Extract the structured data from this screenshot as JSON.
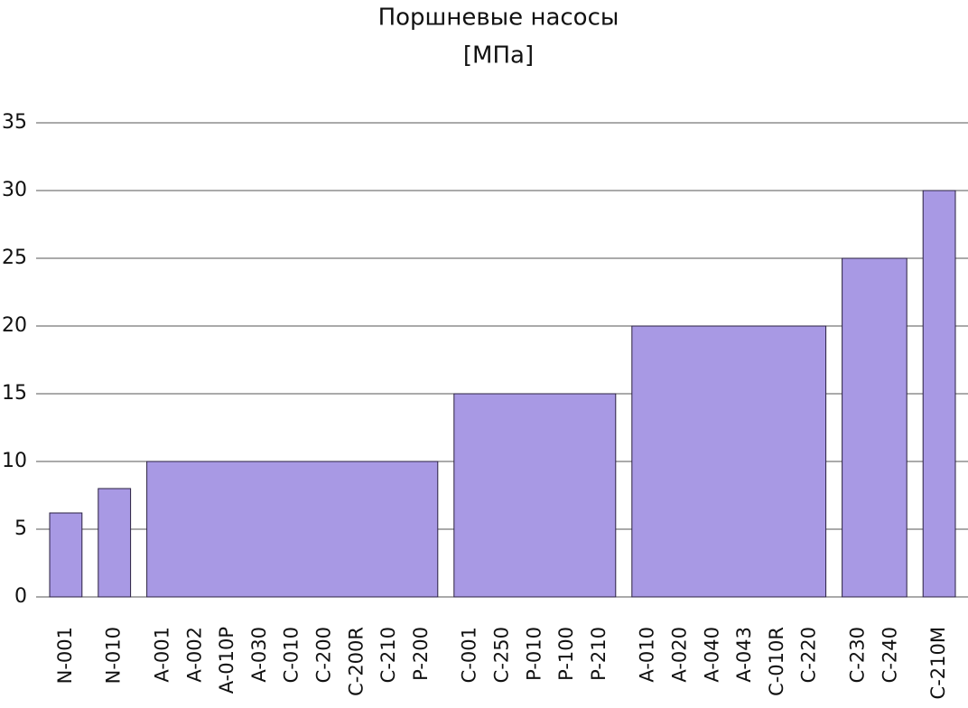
{
  "chart_data": {
    "type": "bar",
    "title": "Поршневые насосы",
    "subtitle": "[МПа]",
    "color": "#a899e4",
    "edge_color": "#2a2040",
    "grid": true,
    "ylim": [
      0,
      35
    ],
    "yticks": [
      0,
      5,
      10,
      15,
      20,
      25,
      30,
      35
    ],
    "groups": [
      {
        "categories": [
          "N-001"
        ],
        "value": 6.2
      },
      {
        "categories": [
          "N-010"
        ],
        "value": 8
      },
      {
        "categories": [
          "A-001",
          "A-002",
          "A-010P",
          "A-030",
          "C-010",
          "C-200",
          "C-200R",
          "C-210",
          "P-200"
        ],
        "value": 10
      },
      {
        "categories": [
          "C-001",
          "C-250",
          "P-010",
          "P-100",
          "P-210"
        ],
        "value": 15
      },
      {
        "categories": [
          "A-010",
          "A-020",
          "A-040",
          "A-043",
          "C-010R",
          "C-220"
        ],
        "value": 20
      },
      {
        "categories": [
          "C-230",
          "C-240"
        ],
        "value": 25
      },
      {
        "categories": [
          "C-210M"
        ],
        "value": 30
      }
    ]
  }
}
